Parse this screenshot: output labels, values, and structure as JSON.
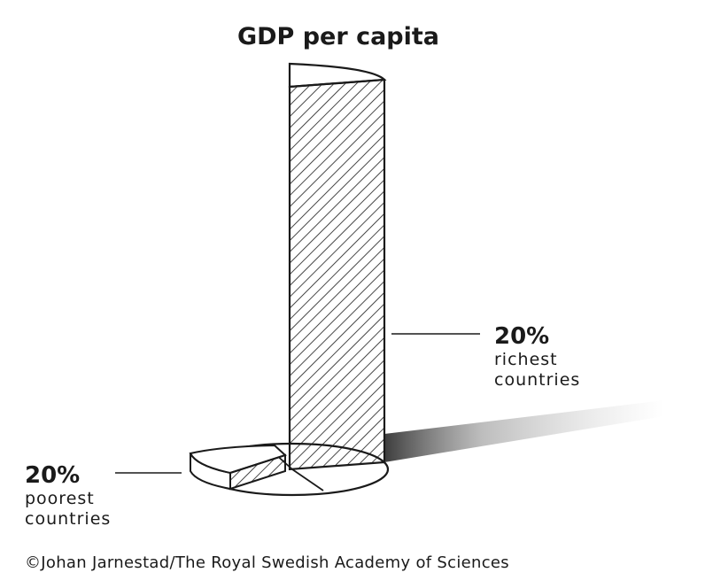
{
  "title": "GDP per capita",
  "rich": {
    "percent": "20%",
    "line1": "richest",
    "line2": "countries"
  },
  "poor": {
    "percent": "20%",
    "line1": "poorest",
    "line2": "countries"
  },
  "credit": "©Johan Jarnestad/The Royal Swedish Academy of Sciences",
  "colors": {
    "ink": "#1a1a1a",
    "background": "#ffffff"
  }
}
